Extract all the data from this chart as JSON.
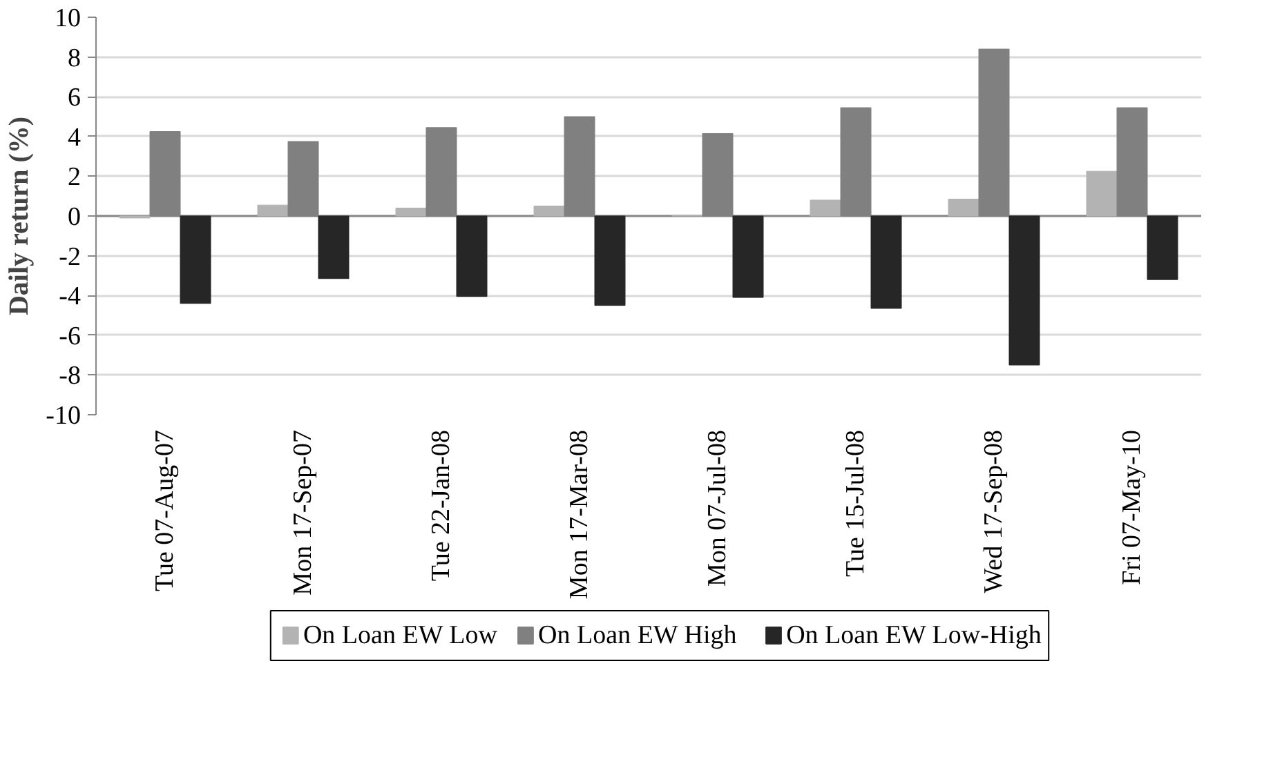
{
  "chart_data": {
    "type": "bar",
    "ylabel": "Daily return (%)",
    "categories": [
      "Tue 07-Aug-07",
      "Mon 17-Sep-07",
      "Tue 22-Jan-08",
      "Mon 17-Mar-08",
      "Mon 07-Jul-08",
      "Tue 15-Jul-08",
      "Wed 17-Sep-08",
      "Fri 07-May-10"
    ],
    "series": [
      {
        "name": "On Loan EW Low",
        "color": "#b3b3b3",
        "values": [
          -0.1,
          0.55,
          0.4,
          0.5,
          0.05,
          0.8,
          0.85,
          2.25
        ]
      },
      {
        "name": "On Loan EW High",
        "color": "#808080",
        "values": [
          4.25,
          3.75,
          4.45,
          5.0,
          4.15,
          5.45,
          8.4,
          5.45
        ]
      },
      {
        "name": "On Loan EW Low-High",
        "color": "#262626",
        "values": [
          -4.4,
          -3.15,
          -4.05,
          -4.5,
          -4.1,
          -4.65,
          -7.5,
          -3.2
        ]
      }
    ],
    "ylim": [
      -10,
      10
    ],
    "yticks": [
      -10,
      -8,
      -6,
      -4,
      -2,
      0,
      2,
      4,
      6,
      8,
      10
    ],
    "grid": "y",
    "legend": "bottom"
  }
}
